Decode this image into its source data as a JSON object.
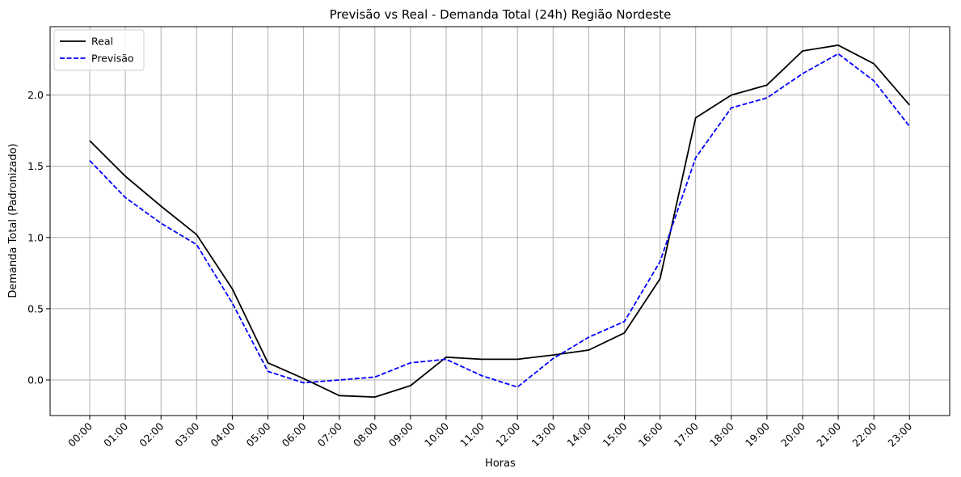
{
  "chart_data": {
    "type": "line",
    "title": "Previsão vs Real - Demanda Total (24h) Região Nordeste",
    "xlabel": "Horas",
    "ylabel": "Demanda Total (Padronizado)",
    "categories": [
      "00:00",
      "01:00",
      "02:00",
      "03:00",
      "04:00",
      "05:00",
      "06:00",
      "07:00",
      "08:00",
      "09:00",
      "10:00",
      "11:00",
      "12:00",
      "13:00",
      "14:00",
      "15:00",
      "16:00",
      "17:00",
      "18:00",
      "19:00",
      "20:00",
      "21:00",
      "22:00",
      "23:00"
    ],
    "ylim": [
      -0.25,
      2.48
    ],
    "yticks": [
      "0.0",
      "0.5",
      "1.0",
      "1.5",
      "2.0"
    ],
    "grid": true,
    "legend_position": "top-left",
    "series": [
      {
        "name": "Real",
        "color": "#000000",
        "style": "solid",
        "values": [
          1.68,
          1.43,
          1.22,
          1.02,
          0.64,
          0.12,
          0.01,
          -0.11,
          -0.12,
          -0.04,
          0.16,
          0.145,
          0.145,
          0.175,
          0.21,
          0.33,
          0.71,
          1.84,
          2.0,
          2.07,
          2.31,
          2.35,
          2.22,
          1.93
        ]
      },
      {
        "name": "Previsão",
        "color": "#0000ff",
        "style": "dashed",
        "values": [
          1.54,
          1.28,
          1.1,
          0.95,
          0.54,
          0.06,
          -0.02,
          0.0,
          0.02,
          0.12,
          0.145,
          0.03,
          -0.05,
          0.15,
          0.3,
          0.41,
          0.83,
          1.56,
          1.91,
          1.98,
          2.15,
          2.29,
          2.1,
          1.78
        ]
      }
    ]
  }
}
